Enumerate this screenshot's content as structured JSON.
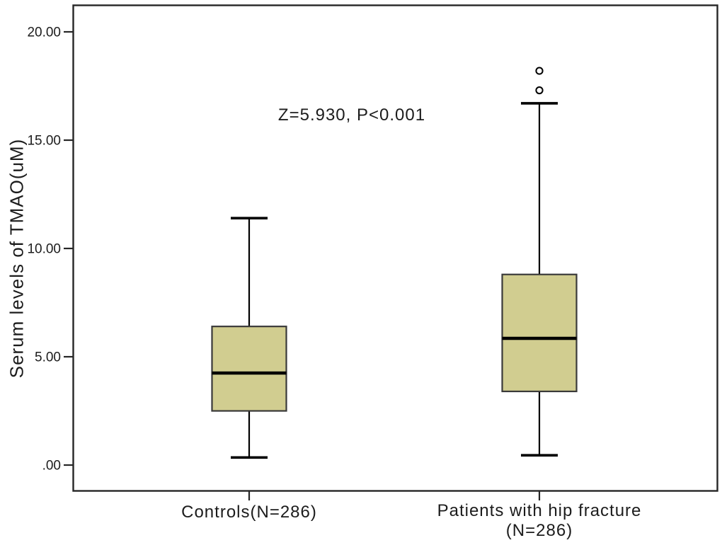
{
  "chart_data": {
    "type": "box",
    "title": "",
    "xlabel": "",
    "ylabel": "Serum levels of TMAO(uM)",
    "ylim": [
      0,
      20
    ],
    "grid": false,
    "annotation": "Z=5.930, P<0.001",
    "y_ticks": [
      {
        "value": 0,
        "label": ".00"
      },
      {
        "value": 5,
        "label": "5.00"
      },
      {
        "value": 10,
        "label": "10.00"
      },
      {
        "value": 15,
        "label": "15.00"
      },
      {
        "value": 20,
        "label": "20.00"
      }
    ],
    "categories": [
      "Controls(N=286)",
      "Patients with hip fracture (N=286)"
    ],
    "series": [
      {
        "name": "Controls(N=286)",
        "whisker_low": 0.35,
        "q1": 2.5,
        "median": 4.25,
        "q3": 6.4,
        "whisker_high": 11.4,
        "outliers": []
      },
      {
        "name": "Patients with hip fracture (N=286)",
        "whisker_low": 0.45,
        "q1": 3.4,
        "median": 5.85,
        "q3": 8.8,
        "whisker_high": 16.7,
        "outliers": [
          17.3,
          18.2
        ]
      }
    ],
    "colors": {
      "box_fill": "#d1cd90",
      "box_border": "#3a3a3a",
      "line": "#000000",
      "plot_border": "#262626",
      "background": "#ffffff",
      "text": "#1c1c1c"
    }
  },
  "labels": {
    "annotation": "Z=5.930, P<0.001",
    "y_axis_title": "Serum levels of TMAO(uM)",
    "x_label_controls": "Controls(N=286)",
    "x_label_patients_line1": "Patients with hip fracture",
    "x_label_patients_line2": "(N=286)"
  }
}
